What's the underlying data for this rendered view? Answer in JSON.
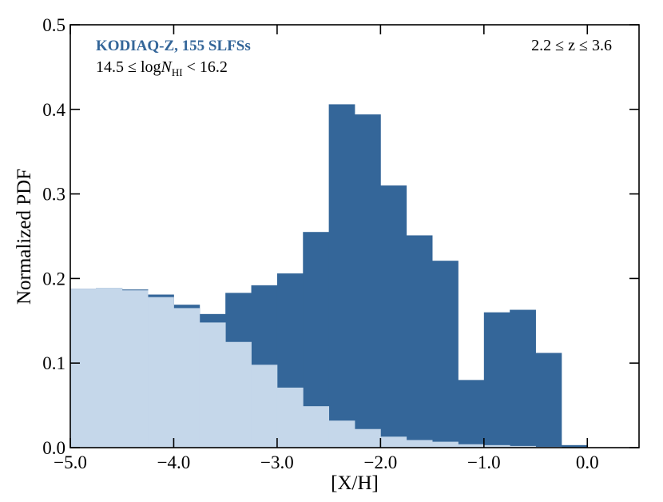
{
  "chart_data": {
    "type": "histogram",
    "xlabel": "[X/H]",
    "ylabel": "Normalized PDF",
    "annotations": [
      "KODIAQ-Z, 155 SLFSs",
      "2.2 ≤ z ≤ 3.6"
    ],
    "column_density_label": [
      "14.5 ≤ log",
      "N",
      "HI",
      " < 16.2"
    ],
    "bins": [
      -5.0,
      -4.75,
      -4.5,
      -4.25,
      -4.0,
      -3.75,
      -3.5,
      -3.25,
      -3.0,
      -2.75,
      -2.5,
      -2.25,
      -2.0,
      -1.75,
      -1.5,
      -1.25,
      -1.0,
      -0.75,
      -0.5,
      -0.25,
      0.0
    ],
    "series": [
      {
        "color": "#346699",
        "values": [
          0.188,
          0.189,
          0.187,
          0.181,
          0.169,
          0.158,
          0.183,
          0.192,
          0.206,
          0.255,
          0.406,
          0.394,
          0.31,
          0.251,
          0.221,
          0.08,
          0.16,
          0.163,
          0.112,
          0.003
        ]
      },
      {
        "color": "#c5d7ea",
        "values": [
          0.188,
          0.189,
          0.186,
          0.178,
          0.165,
          0.148,
          0.125,
          0.098,
          0.071,
          0.049,
          0.032,
          0.022,
          0.013,
          0.009,
          0.007,
          0.004,
          0.003,
          0.002,
          0.001,
          0.0
        ]
      }
    ],
    "xlim": [
      -5.0,
      0.5
    ],
    "ylim": [
      0.0,
      0.5
    ],
    "xticks": [
      {
        "value": -5.0,
        "label": "−5.0"
      },
      {
        "value": -4.0,
        "label": "−4.0"
      },
      {
        "value": -3.0,
        "label": "−3.0"
      },
      {
        "value": -2.0,
        "label": "−2.0"
      },
      {
        "value": -1.0,
        "label": "−1.0"
      },
      {
        "value": 0.0,
        "label": "0.0"
      }
    ],
    "yticks": [
      {
        "value": 0.0,
        "label": "0.0"
      },
      {
        "value": 0.1,
        "label": "0.1"
      },
      0.2,
      0.3,
      0.4,
      0.5
    ]
  }
}
